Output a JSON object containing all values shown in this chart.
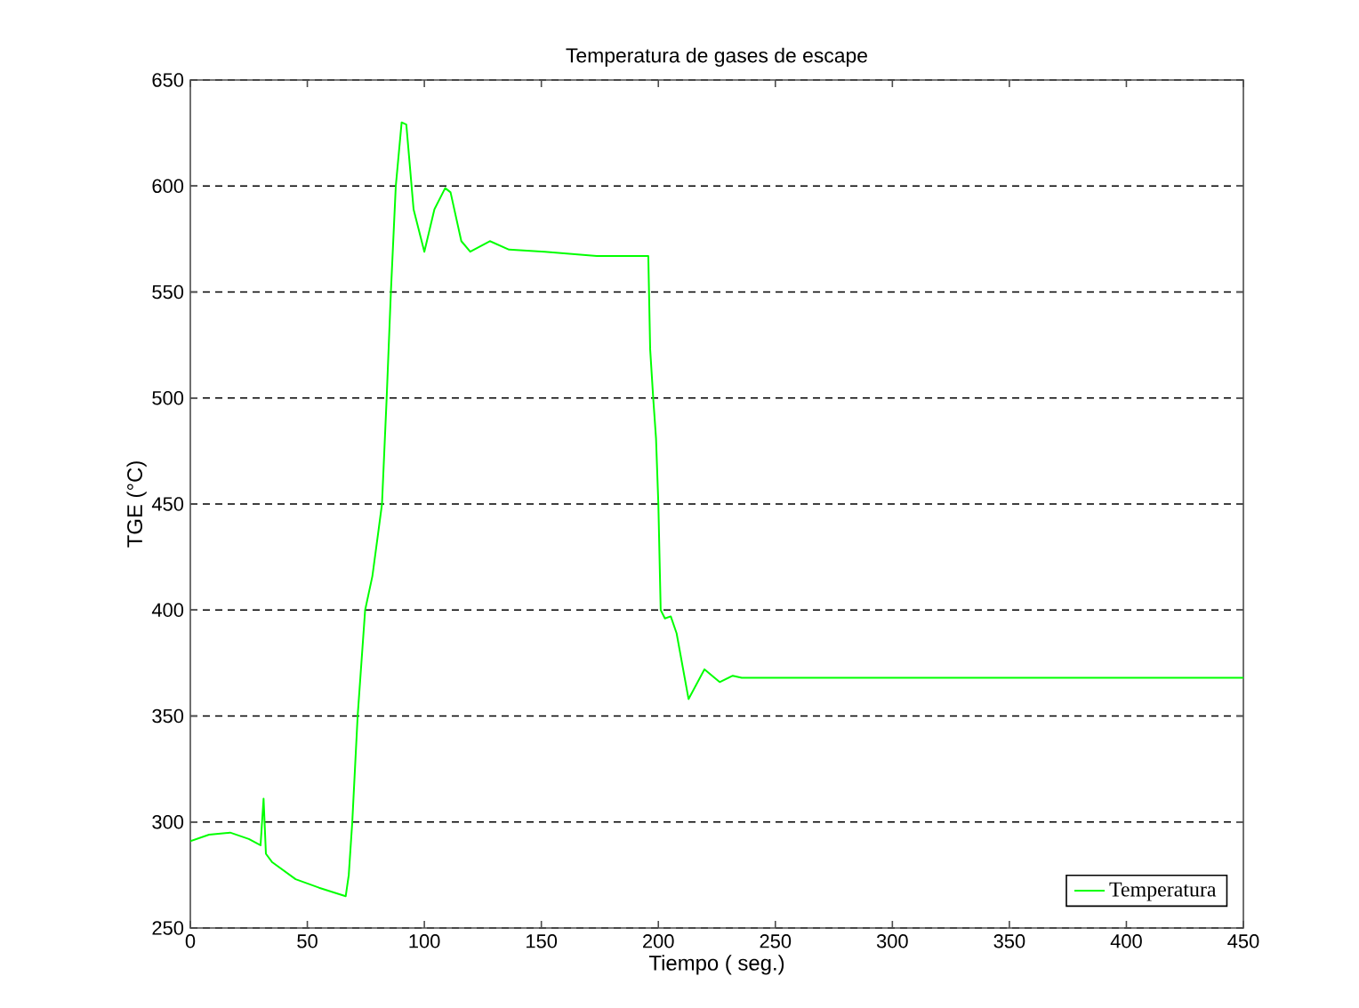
{
  "chart_data": {
    "type": "line",
    "title": "Temperatura de gases de escape",
    "xlabel": "Tiempo ( seg.)",
    "ylabel": "TGE (°C)",
    "x": [
      0,
      8,
      17,
      25,
      30,
      31.3,
      32.3,
      35,
      45,
      55,
      66.4,
      67.7,
      69.2,
      71.5,
      74.7,
      77.8,
      80.1,
      81.9,
      83.9,
      85.7,
      87.8,
      90.3,
      92.3,
      95.4,
      100,
      104.3,
      108.9,
      111.2,
      115.8,
      119.6,
      128,
      136.2,
      151.5,
      173.7,
      195.7,
      196.5,
      197.8,
      199,
      200,
      201,
      202.8,
      205.3,
      207.8,
      212.9,
      219.7,
      226.2,
      231.8,
      235.6,
      450
    ],
    "series": [
      {
        "name": "Temperatura",
        "color": "#00ff00",
        "values": [
          291,
          294,
          295,
          292,
          289,
          311,
          285,
          281,
          273,
          269,
          265,
          275,
          300,
          350,
          400,
          416,
          435,
          450,
          500,
          550,
          600,
          630,
          629,
          589,
          569,
          589,
          599,
          597,
          574,
          569,
          574,
          570,
          569,
          567,
          567,
          523,
          500,
          481,
          450,
          400,
          396,
          397,
          389,
          358,
          372,
          366,
          369,
          368,
          368
        ]
      }
    ],
    "xlim": [
      0,
      450
    ],
    "ylim": [
      250,
      650
    ],
    "xticks": [
      0,
      50,
      100,
      150,
      200,
      250,
      300,
      350,
      400,
      450
    ],
    "yticks": [
      250,
      300,
      350,
      400,
      450,
      500,
      550,
      600,
      650
    ],
    "grid": "y",
    "legend": "bottom right"
  }
}
